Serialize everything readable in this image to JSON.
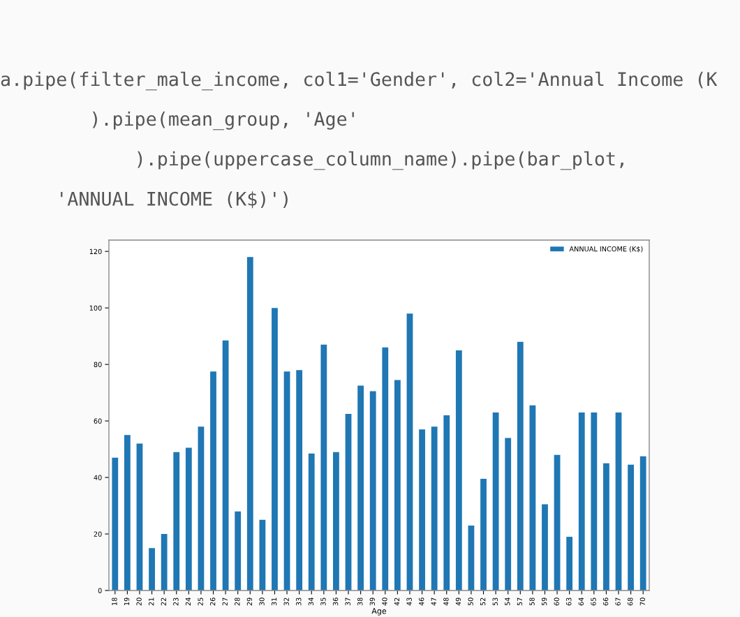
{
  "chart_data": {
    "type": "bar",
    "xlabel": "Age",
    "categories": [
      "18",
      "19",
      "20",
      "21",
      "22",
      "23",
      "24",
      "25",
      "26",
      "27",
      "28",
      "29",
      "30",
      "31",
      "32",
      "33",
      "34",
      "35",
      "36",
      "37",
      "38",
      "39",
      "40",
      "42",
      "43",
      "46",
      "47",
      "48",
      "49",
      "50",
      "52",
      "53",
      "54",
      "57",
      "58",
      "59",
      "60",
      "63",
      "64",
      "65",
      "66",
      "67",
      "68",
      "70"
    ],
    "series": [
      {
        "name": "ANNUAL INCOME (K$)",
        "color": "#1f77b4",
        "values": [
          47,
          55,
          52,
          15,
          20,
          49,
          50.5,
          58,
          77.5,
          88.5,
          28,
          118,
          25,
          100,
          77.5,
          78,
          48.5,
          87,
          49,
          62.5,
          72.5,
          70.5,
          86,
          74.5,
          98,
          57,
          58,
          62,
          85,
          23,
          39.5,
          63,
          54,
          88,
          65.5,
          30.5,
          48,
          19,
          63,
          63,
          45,
          63,
          44.5,
          47.5
        ]
      }
    ],
    "ylim": [
      0,
      124
    ],
    "yticks": [
      0,
      20,
      40,
      60,
      80,
      100,
      120
    ],
    "legend": "top right",
    "grid": false,
    "annotations": [
      "a.pipe(filter_male_income, col1='Gender', col2='Annual Income (K",
      "        ).pipe(mean_group, 'Age'",
      "            ).pipe(uppercase_column_name).pipe(bar_plot,",
      "     'ANNUAL INCOME (K$)')"
    ]
  }
}
